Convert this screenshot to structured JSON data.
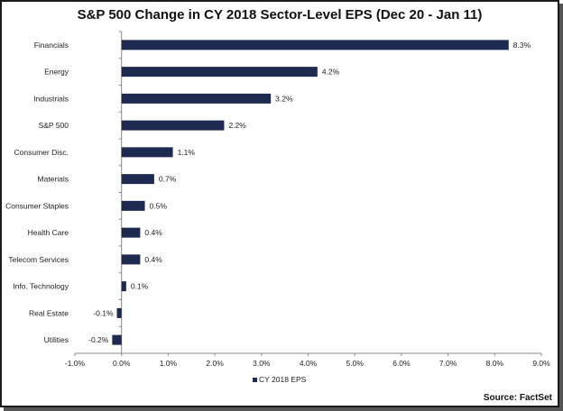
{
  "chart_data": {
    "type": "bar",
    "orientation": "horizontal",
    "title": "S&P 500 Change in CY 2018 Sector-Level EPS (Dec 20 - Jan 11)",
    "categories": [
      "Financials",
      "Energy",
      "Industrials",
      "S&P 500",
      "Consumer Disc.",
      "Materials",
      "Consumer Staples",
      "Health Care",
      "Telecom Services",
      "Info. Technology",
      "Real Estate",
      "Utilities"
    ],
    "series": [
      {
        "name": "CY 2018 EPS",
        "values": [
          8.3,
          4.2,
          3.2,
          2.2,
          1.1,
          0.7,
          0.5,
          0.4,
          0.4,
          0.1,
          -0.1,
          -0.2
        ],
        "labels": [
          "8.3%",
          "4.2%",
          "3.2%",
          "2.2%",
          "1.1%",
          "0.7%",
          "0.5%",
          "0.4%",
          "0.4%",
          "0.1%",
          "-0.1%",
          "-0.2%"
        ]
      }
    ],
    "xlim": [
      -1.0,
      9.0
    ],
    "xticks": [
      -1,
      0,
      1,
      2,
      3,
      4,
      5,
      6,
      7,
      8,
      9
    ],
    "xtick_labels": [
      "-1.0%",
      "0.0%",
      "1.0%",
      "2.0%",
      "3.0%",
      "4.0%",
      "5.0%",
      "6.0%",
      "7.0%",
      "8.0%",
      "9.0%"
    ],
    "grid": false,
    "legend": "bottom",
    "bar_color": "#1f2a50"
  },
  "source": "Source: FactSet"
}
